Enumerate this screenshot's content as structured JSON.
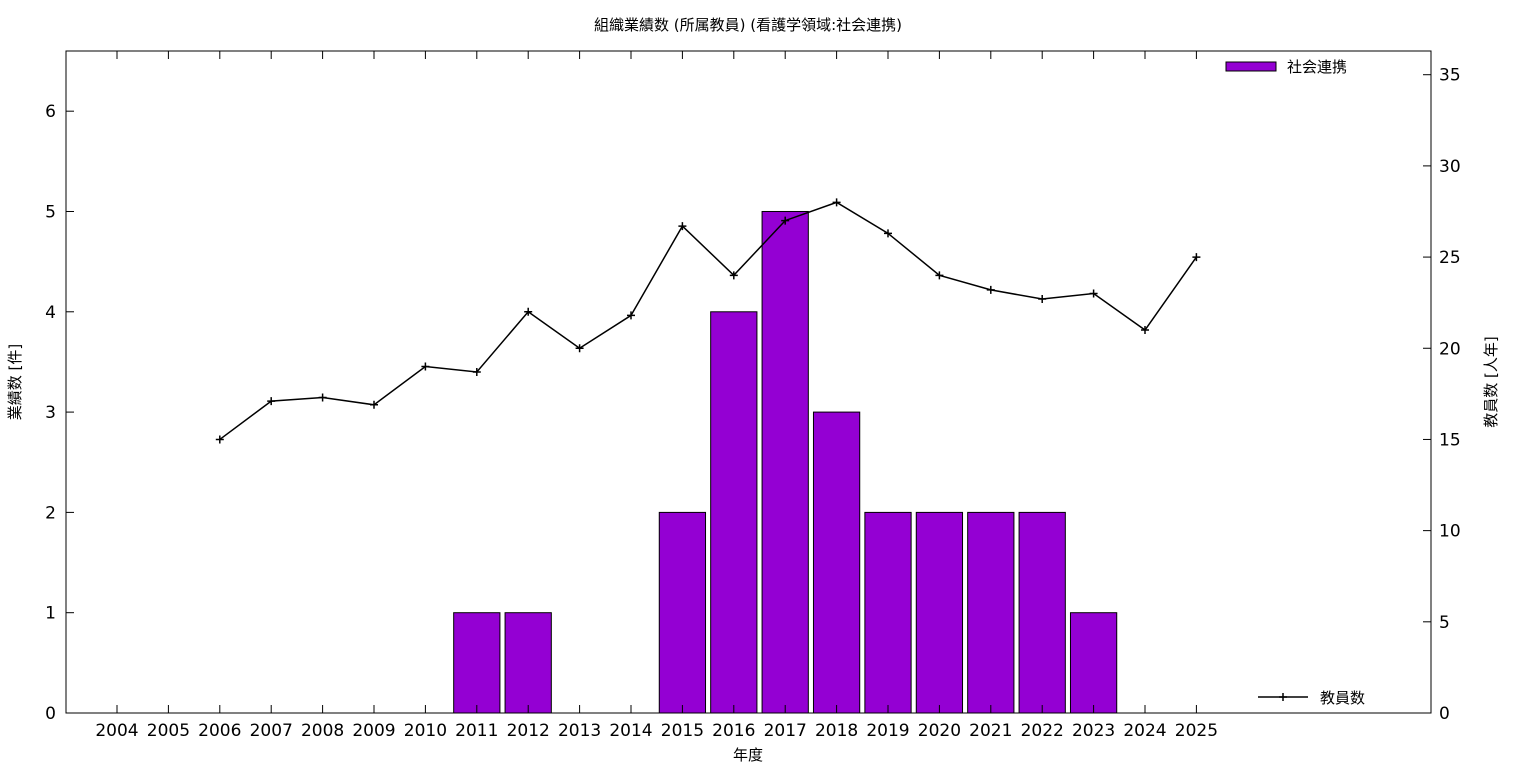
{
  "chart_data": {
    "type": "bar",
    "title": "組織業績数 (所属教員) (看護学領域:社会連携)",
    "xlabel": "年度",
    "ylabel": "業績数 [件]",
    "y2label": "教員数 [人年]",
    "categories": [
      "2004",
      "2005",
      "2006",
      "2007",
      "2008",
      "2009",
      "2010",
      "2011",
      "2012",
      "2013",
      "2014",
      "2015",
      "2016",
      "2017",
      "2018",
      "2019",
      "2020",
      "2021",
      "2022",
      "2023",
      "2024",
      "2025"
    ],
    "series": [
      {
        "name": "社会連携",
        "type": "bar",
        "axis": "left",
        "color": "#9400d3",
        "values": [
          0,
          0,
          0,
          0,
          0,
          0,
          0,
          1,
          1,
          0,
          0,
          2,
          4,
          5,
          3,
          2,
          2,
          2,
          2,
          1,
          0,
          0
        ]
      },
      {
        "name": "教員数",
        "type": "line",
        "axis": "right",
        "color": "#000000",
        "marker": "plus",
        "values": [
          null,
          null,
          15.0,
          17.1,
          17.3,
          16.9,
          19.0,
          18.7,
          22.0,
          20.0,
          21.8,
          26.7,
          24.0,
          27.0,
          28.0,
          26.3,
          24.0,
          23.2,
          22.7,
          23.0,
          21.0,
          25.0
        ]
      }
    ],
    "ylim": [
      0,
      6.6
    ],
    "yticks": [
      0,
      1,
      2,
      3,
      4,
      5,
      6
    ],
    "y2lim": [
      0,
      36.3
    ],
    "y2ticks": [
      0,
      5,
      10,
      15,
      20,
      25,
      30,
      35
    ],
    "legend_bar_position": "top-right",
    "legend_line_position": "bottom-right",
    "grid": false
  }
}
